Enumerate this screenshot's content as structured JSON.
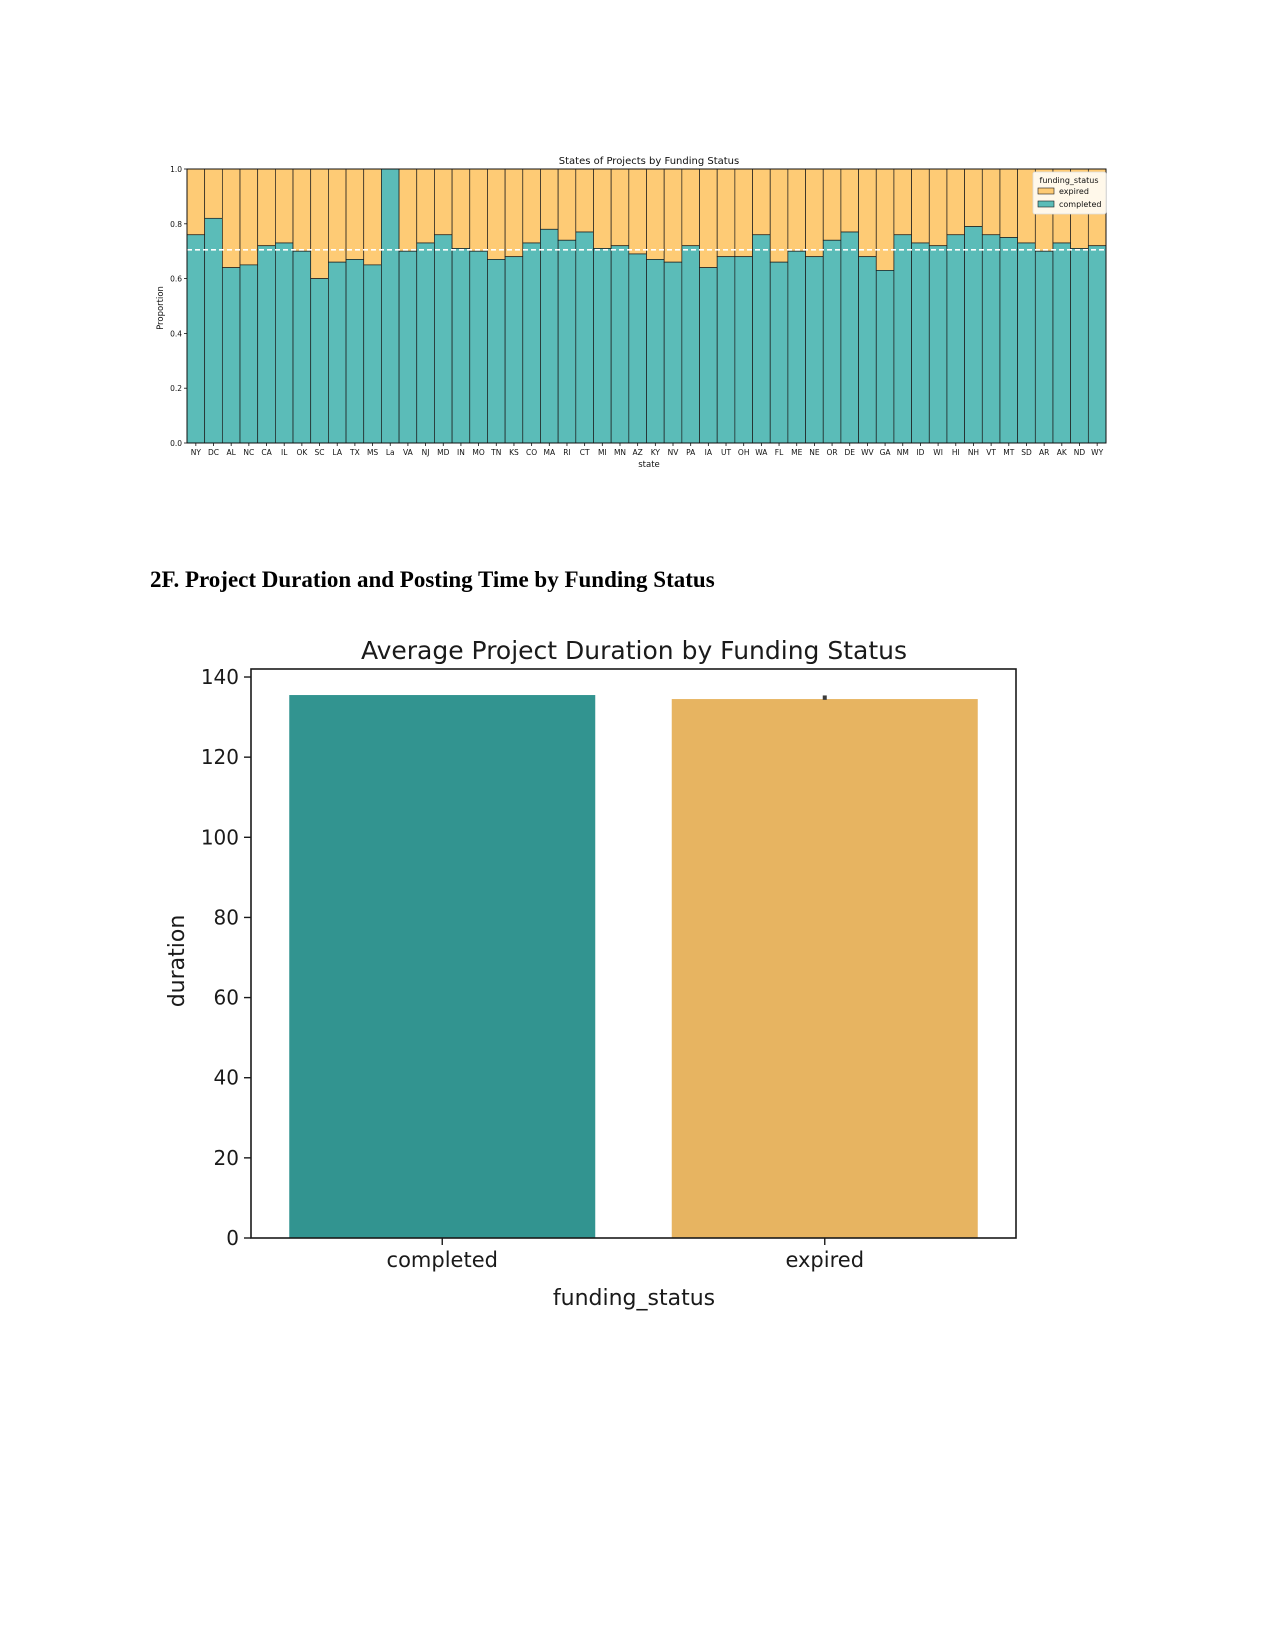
{
  "section_heading": "2F. Project Duration and Posting Time by Funding Status",
  "chart_data": [
    {
      "type": "bar",
      "stacked": true,
      "title": "States of Projects by Funding Status",
      "xlabel": "state",
      "ylabel": "Proportion",
      "ylim": [
        0,
        1.0
      ],
      "yticks": [
        0.0,
        0.2,
        0.4,
        0.6,
        0.8,
        1.0
      ],
      "ytick_labels": [
        "0.0",
        "0.2",
        "0.4",
        "0.6",
        "0.8",
        "1.0"
      ],
      "reference_line": 0.705,
      "grid": false,
      "legend": {
        "title": "funding_status",
        "placement": "top-right",
        "entries": [
          "expired",
          "completed"
        ]
      },
      "colors": {
        "completed": "#5bbcb8",
        "expired": "#fecb75",
        "edge": "#1a1a1a",
        "reference": "#ffffff"
      },
      "categories": [
        "NY",
        "DC",
        "AL",
        "NC",
        "CA",
        "IL",
        "OK",
        "SC",
        "LA",
        "TX",
        "MS",
        "La",
        "VA",
        "NJ",
        "MD",
        "IN",
        "MO",
        "TN",
        "KS",
        "CO",
        "MA",
        "RI",
        "CT",
        "MI",
        "MN",
        "AZ",
        "KY",
        "NV",
        "PA",
        "IA",
        "UT",
        "OH",
        "WA",
        "FL",
        "ME",
        "NE",
        "OR",
        "DE",
        "WV",
        "GA",
        "NM",
        "ID",
        "WI",
        "HI",
        "NH",
        "VT",
        "MT",
        "SD",
        "AR",
        "AK",
        "ND",
        "WY"
      ],
      "series": [
        {
          "name": "completed",
          "values": [
            0.76,
            0.82,
            0.64,
            0.65,
            0.72,
            0.73,
            0.7,
            0.6,
            0.66,
            0.67,
            0.65,
            1.0,
            0.7,
            0.73,
            0.76,
            0.71,
            0.7,
            0.67,
            0.68,
            0.73,
            0.78,
            0.74,
            0.77,
            0.71,
            0.72,
            0.69,
            0.67,
            0.66,
            0.72,
            0.64,
            0.68,
            0.68,
            0.76,
            0.66,
            0.7,
            0.68,
            0.74,
            0.77,
            0.68,
            0.63,
            0.76,
            0.73,
            0.72,
            0.76,
            0.79,
            0.76,
            0.75,
            0.73,
            0.7,
            0.73,
            0.71,
            0.72
          ]
        },
        {
          "name": "expired",
          "values": [
            0.24,
            0.18,
            0.36,
            0.35,
            0.28,
            0.27,
            0.3,
            0.4,
            0.34,
            0.33,
            0.35,
            0.0,
            0.3,
            0.27,
            0.24,
            0.29,
            0.3,
            0.33,
            0.32,
            0.27,
            0.22,
            0.26,
            0.23,
            0.29,
            0.28,
            0.31,
            0.33,
            0.34,
            0.28,
            0.36,
            0.32,
            0.32,
            0.24,
            0.34,
            0.3,
            0.32,
            0.26,
            0.23,
            0.32,
            0.37,
            0.24,
            0.27,
            0.28,
            0.24,
            0.21,
            0.24,
            0.25,
            0.27,
            0.3,
            0.27,
            0.29,
            0.28
          ]
        }
      ]
    },
    {
      "type": "bar",
      "title": "Average Project Duration by Funding Status",
      "xlabel": "funding_status",
      "ylabel": "duration",
      "ylim": [
        0,
        142
      ],
      "yticks": [
        0,
        20,
        40,
        60,
        80,
        100,
        120,
        140
      ],
      "ytick_labels": [
        "0",
        "20",
        "40",
        "60",
        "80",
        "100",
        "120",
        "140"
      ],
      "grid": false,
      "categories": [
        "completed",
        "expired"
      ],
      "values": [
        135.5,
        134.5
      ],
      "error_bar": {
        "expired": [
          134.3,
          135.4
        ]
      },
      "colors": {
        "completed": "#329490",
        "expired": "#e7b461",
        "errorbar": "#3c3c3c"
      }
    }
  ]
}
